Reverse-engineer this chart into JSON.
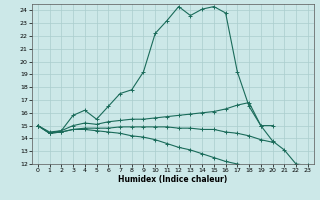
{
  "xlabel": "Humidex (Indice chaleur)",
  "xlim": [
    -0.5,
    23.5
  ],
  "ylim": [
    12,
    24.5
  ],
  "yticks": [
    12,
    13,
    14,
    15,
    16,
    17,
    18,
    19,
    20,
    21,
    22,
    23,
    24
  ],
  "xticks": [
    0,
    1,
    2,
    3,
    4,
    5,
    6,
    7,
    8,
    9,
    10,
    11,
    12,
    13,
    14,
    15,
    16,
    17,
    18,
    19,
    20,
    21,
    22,
    23
  ],
  "bg_color": "#cce8e8",
  "grid_color": "#aacece",
  "line_color": "#1a6b5a",
  "lines": [
    {
      "x": [
        0,
        1,
        2,
        3,
        4,
        5,
        6,
        7,
        8,
        9,
        10,
        11,
        12,
        13,
        14,
        15,
        16,
        17,
        18,
        19,
        20,
        21,
        22,
        23
      ],
      "y": [
        15,
        14.4,
        14.6,
        15.8,
        16.2,
        15.5,
        16.5,
        17.5,
        17.8,
        19.2,
        22.2,
        23.2,
        24.3,
        23.6,
        24.1,
        24.3,
        23.8,
        19.2,
        16.5,
        15.0,
        13.8,
        13.1,
        12.0,
        11.9
      ]
    },
    {
      "x": [
        0,
        1,
        2,
        3,
        4,
        5,
        6,
        7,
        8,
        9,
        10,
        11,
        12,
        13,
        14,
        15,
        16,
        17,
        18,
        19,
        20
      ],
      "y": [
        15,
        14.5,
        14.6,
        15.0,
        15.2,
        15.1,
        15.3,
        15.4,
        15.5,
        15.5,
        15.6,
        15.7,
        15.8,
        15.9,
        16.0,
        16.1,
        16.3,
        16.6,
        16.8,
        15.0,
        15.0
      ]
    },
    {
      "x": [
        0,
        1,
        2,
        3,
        4,
        5,
        6,
        7,
        8,
        9,
        10,
        11,
        12,
        13,
        14,
        15,
        16,
        17,
        18,
        19,
        20
      ],
      "y": [
        15,
        14.4,
        14.5,
        14.7,
        14.8,
        14.8,
        14.8,
        14.9,
        14.9,
        14.9,
        14.9,
        14.9,
        14.8,
        14.8,
        14.7,
        14.7,
        14.5,
        14.4,
        14.2,
        13.9,
        13.7
      ]
    },
    {
      "x": [
        0,
        1,
        2,
        3,
        4,
        5,
        6,
        7,
        8,
        9,
        10,
        11,
        12,
        13,
        14,
        15,
        16,
        17,
        18,
        19,
        20,
        21,
        22,
        23
      ],
      "y": [
        15,
        14.4,
        14.5,
        14.7,
        14.7,
        14.6,
        14.5,
        14.4,
        14.2,
        14.1,
        13.9,
        13.6,
        13.3,
        13.1,
        12.8,
        12.5,
        12.2,
        12.0,
        11.8,
        11.5,
        11.3,
        11.0,
        null,
        null
      ]
    }
  ]
}
